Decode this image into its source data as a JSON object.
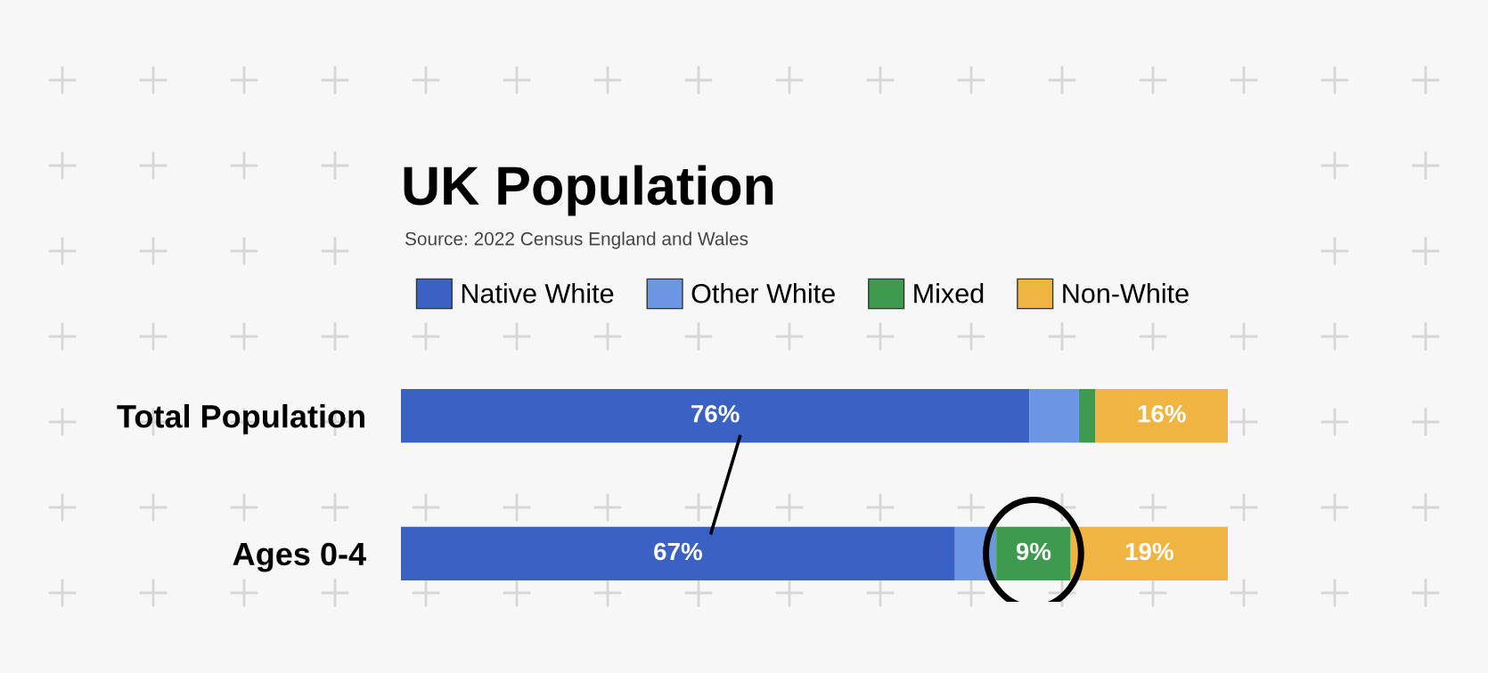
{
  "chart_data": {
    "type": "bar",
    "orientation": "horizontal",
    "stacked": true,
    "title": "UK Population",
    "annotations": [
      "Source: 2022 Census England and Wales"
    ],
    "categories": [
      "Total Population",
      "Ages 0-4"
    ],
    "series": [
      {
        "name": "Native White",
        "color": "#3a62c4",
        "values": [
          76,
          67
        ],
        "value_labels": [
          "76%",
          "67%"
        ]
      },
      {
        "name": "Other White",
        "color": "#6a96e4",
        "values": [
          6,
          5
        ],
        "value_labels": [
          null,
          null
        ]
      },
      {
        "name": "Mixed",
        "color": "#3e9a4f",
        "values": [
          2,
          9
        ],
        "value_labels": [
          null,
          "9%"
        ]
      },
      {
        "name": "Non-White",
        "color": "#f0b440",
        "values": [
          16,
          19
        ],
        "value_labels": [
          "16%",
          "19%"
        ]
      }
    ],
    "xlim": [
      0,
      100
    ],
    "tick_labels": "y",
    "grid": false,
    "legend": "top"
  }
}
